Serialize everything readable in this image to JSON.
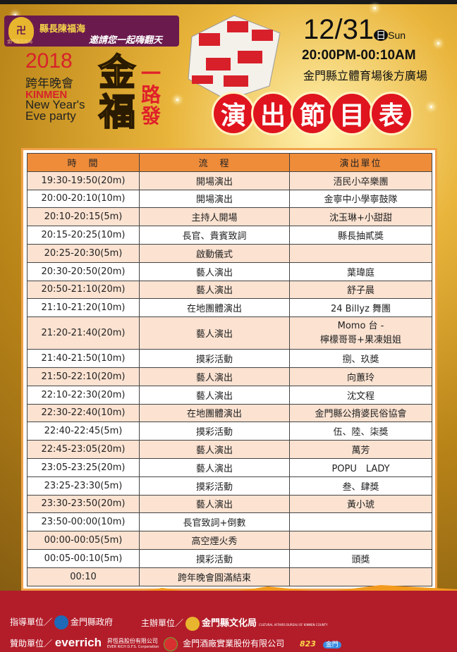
{
  "header": {
    "organizer_logo_caption": "金門縣文化局",
    "invite_line1": "縣長陳福海",
    "invite_line2": "邀請您一起嗨翻天",
    "year": "2018",
    "event_zh": "跨年晚會",
    "kinmen": "KINMEN",
    "event_en_1": "New Year's",
    "event_en_2": "Eve party",
    "slogan_big": "金福",
    "slogan_side": "一路發",
    "date": "12/31",
    "weekday_zh": "日",
    "weekday_en": "Sun",
    "time": "20:00PM-00:10AM",
    "venue": "金門縣立體育場後方廣場",
    "program_title": [
      "演",
      "出",
      "節",
      "目",
      "表"
    ]
  },
  "schedule": {
    "columns": [
      "時　間",
      "流　程",
      "演出單位"
    ],
    "rows": [
      {
        "time": "19:30-19:50(20m)",
        "item": "開場演出",
        "performer": "浯民小卒樂團"
      },
      {
        "time": "20:00-20:10(10m)",
        "item": "開場演出",
        "performer": "金寧中小學寧鼓隊"
      },
      {
        "time": "20:10-20:15(5m)",
        "item": "主持人開場",
        "performer": "沈玉琳+小甜甜"
      },
      {
        "time": "20:15-20:25(10m)",
        "item": "長官、貴賓致詞",
        "performer": "縣長抽貳獎"
      },
      {
        "time": "20:25-20:30(5m)",
        "item": "啟動儀式",
        "performer": ""
      },
      {
        "time": "20:30-20:50(20m)",
        "item": "藝人演出",
        "performer": "葉瑋庭"
      },
      {
        "time": "20:50-21:10(20m)",
        "item": "藝人演出",
        "performer": "舒子晨"
      },
      {
        "time": "21:10-21:20(10m)",
        "item": "在地團體演出",
        "performer": "24 Billyz 舞團"
      },
      {
        "time": "21:20-21:40(20m)",
        "item": "藝人演出",
        "performer": "Momo 台 -",
        "performer2": "檸檬哥哥+果凍姐姐"
      },
      {
        "time": "21:40-21:50(10m)",
        "item": "摸彩活動",
        "performer": "捌、玖獎"
      },
      {
        "time": "21:50-22:10(20m)",
        "item": "藝人演出",
        "performer": "向蕙玲"
      },
      {
        "time": "22:10-22:30(20m)",
        "item": "藝人演出",
        "performer": "沈文程"
      },
      {
        "time": "22:30-22:40(10m)",
        "item": "在地團體演出",
        "performer": "金門縣公揹婆民俗協會"
      },
      {
        "time": "22:40-22:45(5m)",
        "item": "摸彩活動",
        "performer": "伍、陸、柒獎"
      },
      {
        "time": "22:45-23:05(20m)",
        "item": "藝人演出",
        "performer": "萬芳"
      },
      {
        "time": "23:05-23:25(20m)",
        "item": "藝人演出",
        "performer": "POPU　LADY"
      },
      {
        "time": "23:25-23:30(5m)",
        "item": "摸彩活動",
        "performer": "叁、肆獎"
      },
      {
        "time": "23:30-23:50(20m)",
        "item": "藝人演出",
        "performer": "黃小琥"
      },
      {
        "time": "23:50-00:00(10m)",
        "item": "長官致詞+倒數",
        "performer": ""
      },
      {
        "time": "00:00-00:05(5m)",
        "item": "高空煙火秀",
        "performer": ""
      },
      {
        "time": "00:05-00:10(5m)",
        "item": "摸彩活動",
        "performer": "頭獎"
      },
      {
        "time": "00:10",
        "item": "跨年晚會圓滿結束",
        "performer": ""
      }
    ]
  },
  "footer": {
    "guide_label": "指導單位／",
    "guide_org": "金門縣政府",
    "host_label": "主辦單位／",
    "host_org": "金門縣文化局",
    "host_org_en": "CULTURAL AFFAIRS BUREAU OF KINMEN COUNTY",
    "sponsor_label": "贊助單位／",
    "sponsor1": "everrich",
    "sponsor1_zh": "昇恆昌股份有限公司",
    "sponsor1_en": "EVER RICH D.F.S. Corporation",
    "sponsor2": "金門酒廠實業股份有限公司",
    "sponsor3": "823",
    "sponsor4": "金門"
  },
  "colors": {
    "header_orange": "#ef8c3a",
    "row_peach": "#fbe2d1",
    "accent_red": "#e0141e",
    "footer_red": "#b31d2a"
  }
}
